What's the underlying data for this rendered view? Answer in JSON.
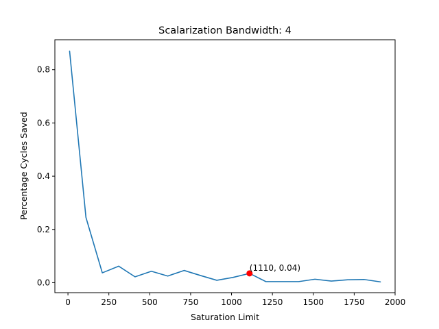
{
  "chart_data": {
    "type": "line",
    "title": "Scalarization Bandwidth: 4",
    "xlabel": "Saturation Limit",
    "ylabel": "Percentage Cycles Saved",
    "xlim": [
      -80,
      2000
    ],
    "ylim": [
      -0.0375,
      0.9125
    ],
    "xticks": [
      0,
      250,
      500,
      750,
      1000,
      1250,
      1500,
      1750,
      2000
    ],
    "yticks": [
      0.0,
      0.2,
      0.4,
      0.6,
      0.8
    ],
    "grid": false,
    "series": [
      {
        "color": "#1f77b4",
        "x": [
          10,
          110,
          210,
          310,
          410,
          510,
          610,
          710,
          810,
          910,
          1010,
          1110,
          1210,
          1310,
          1410,
          1510,
          1610,
          1710,
          1810,
          1910
        ],
        "y": [
          0.87,
          0.245,
          0.037,
          0.062,
          0.022,
          0.043,
          0.025,
          0.046,
          0.027,
          0.009,
          0.02,
          0.035,
          0.004,
          0.004,
          0.004,
          0.013,
          0.006,
          0.011,
          0.012,
          0.003
        ]
      }
    ],
    "highlight": {
      "x": 1110,
      "y": 0.035,
      "label": "(1110, 0.04)",
      "color": "#ff0000"
    }
  }
}
